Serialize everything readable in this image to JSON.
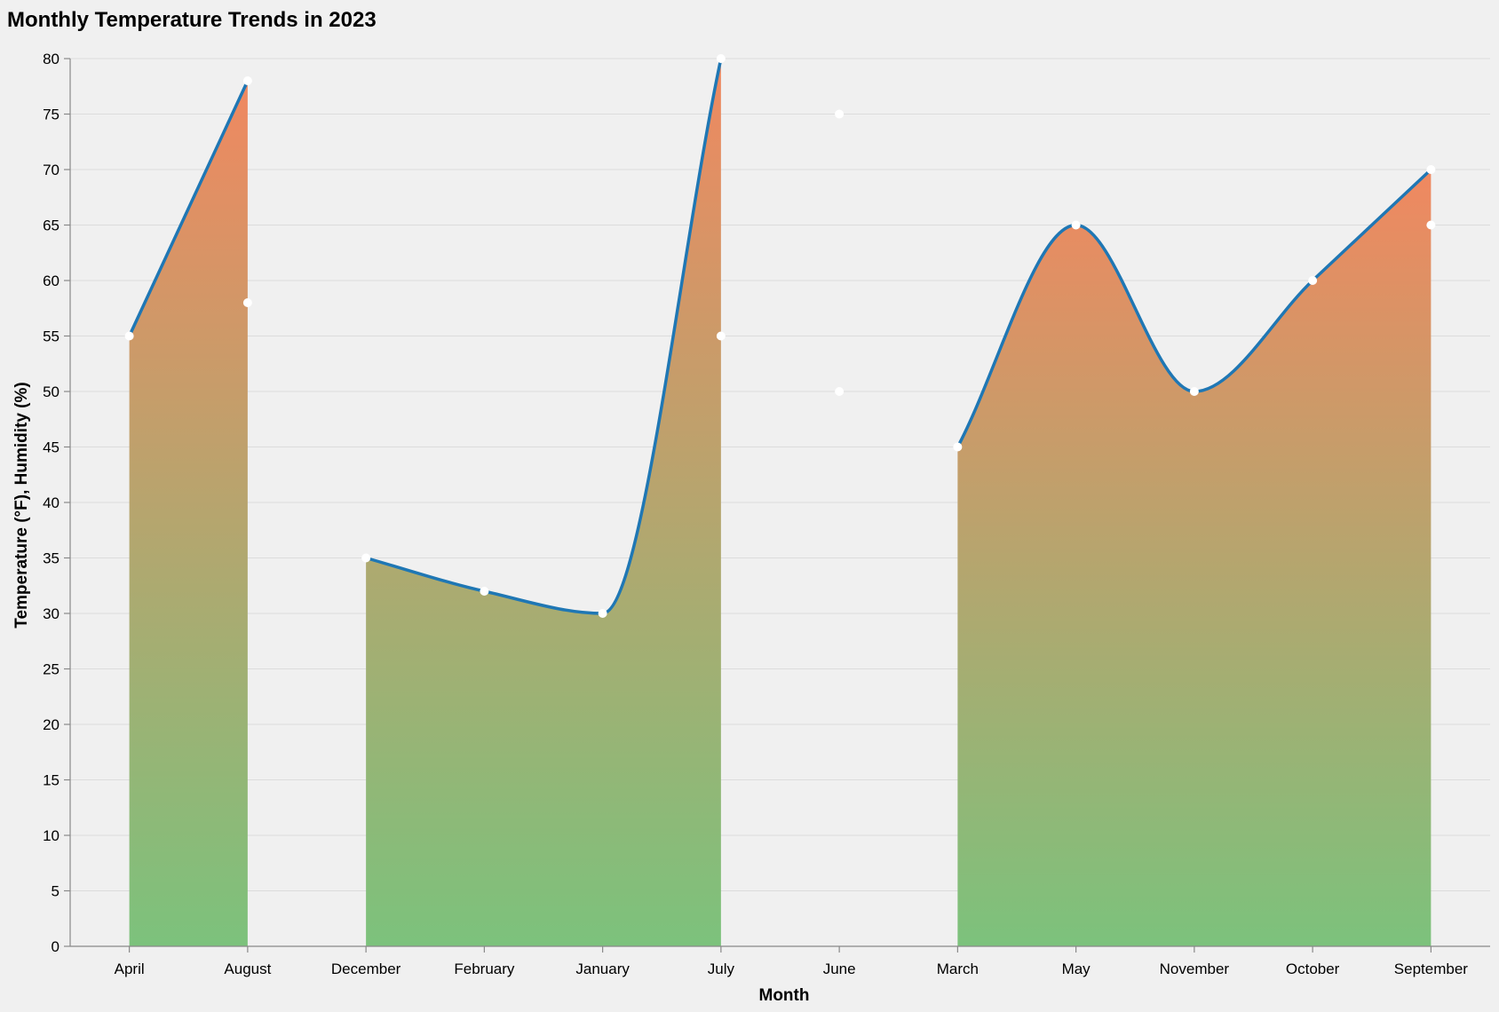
{
  "chart_data": {
    "type": "area",
    "title": "Monthly Temperature Trends in 2023",
    "xlabel": "Month",
    "ylabel": "Temperature (°F), Humidity (%)",
    "categories": [
      "April",
      "August",
      "December",
      "February",
      "January",
      "July",
      "June",
      "March",
      "May",
      "November",
      "October",
      "September"
    ],
    "ylim": [
      0,
      80
    ],
    "yticks": [
      0,
      5,
      10,
      15,
      20,
      25,
      30,
      35,
      40,
      45,
      50,
      55,
      60,
      65,
      70,
      75,
      80
    ],
    "grid": true,
    "series": [
      {
        "values": [
          55,
          78,
          null,
          null,
          null,
          null,
          null,
          null,
          null,
          null,
          null,
          null
        ]
      },
      {
        "values": [
          null,
          null,
          35,
          32,
          30,
          80,
          null,
          null,
          null,
          null,
          null,
          null
        ]
      },
      {
        "values": [
          null,
          null,
          null,
          null,
          null,
          null,
          null,
          45,
          65,
          50,
          60,
          70
        ]
      }
    ],
    "extra_points": [
      {
        "x": "August",
        "y": 58
      },
      {
        "x": "July",
        "y": 55
      },
      {
        "x": "June",
        "y": 75
      },
      {
        "x": "June",
        "y": 50
      },
      {
        "x": "September",
        "y": 65
      }
    ],
    "colors": {
      "line": "#1f77b4",
      "area_top": "#f08860",
      "area_bottom": "#7cc27c",
      "point": "#ffffff"
    }
  }
}
